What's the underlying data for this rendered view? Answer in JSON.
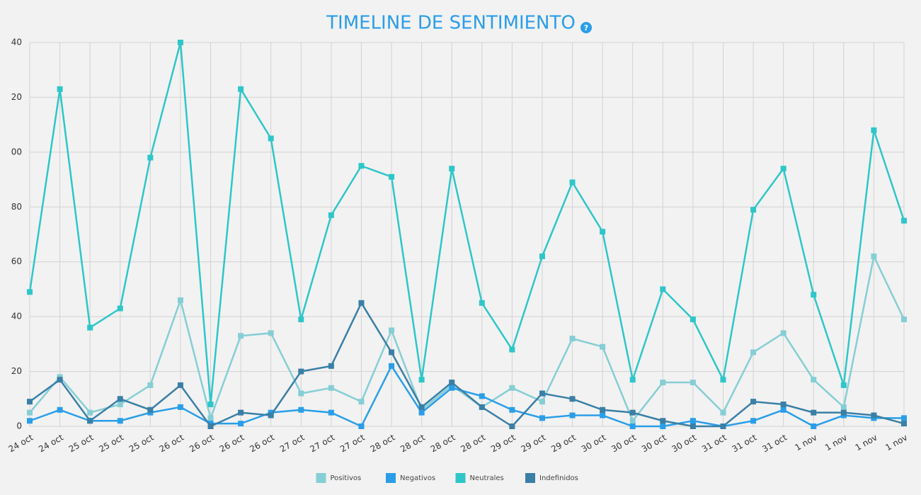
{
  "chart_data": {
    "type": "line",
    "title": "TIMELINE DE SENTIMIENTO",
    "help_icon": "?",
    "categories": [
      "24 oct",
      "24 oct",
      "25 oct",
      "25 oct",
      "25 oct",
      "26 oct",
      "26 oct",
      "26 oct",
      "26 oct",
      "27 oct",
      "27 oct",
      "27 oct",
      "28 oct",
      "28 oct",
      "28 oct",
      "28 oct",
      "29 oct",
      "29 oct",
      "29 oct",
      "30 oct",
      "30 oct",
      "30 oct",
      "30 oct",
      "31 oct",
      "31 oct",
      "31 oct",
      "1 nov",
      "1 nov",
      "1 nov",
      "1 nov"
    ],
    "series": [
      {
        "name": "Positivos",
        "color": "#86ced5",
        "values": [
          5,
          18,
          5,
          8,
          15,
          46,
          3,
          33,
          34,
          12,
          14,
          9,
          35,
          6,
          15,
          7,
          14,
          9,
          32,
          29,
          2,
          16,
          16,
          5,
          27,
          34,
          17,
          7,
          62,
          39
        ]
      },
      {
        "name": "Negativos",
        "color": "#2a9ee8",
        "values": [
          2,
          6,
          2,
          2,
          5,
          7,
          1,
          1,
          5,
          6,
          5,
          0,
          22,
          5,
          14,
          11,
          6,
          3,
          4,
          4,
          0,
          0,
          2,
          0,
          2,
          6,
          0,
          4,
          3,
          3
        ]
      },
      {
        "name": "Neutrales",
        "color": "#2ec6c9",
        "values": [
          49,
          123,
          36,
          43,
          98,
          140,
          8,
          123,
          105,
          39,
          77,
          95,
          91,
          17,
          94,
          45,
          28,
          62,
          89,
          71,
          17,
          50,
          39,
          17,
          79,
          94,
          48,
          15,
          108,
          75
        ]
      },
      {
        "name": "Indefinidos",
        "color": "#3a7fa6",
        "values": [
          9,
          17,
          2,
          10,
          6,
          15,
          0,
          5,
          4,
          20,
          22,
          45,
          27,
          7,
          16,
          7,
          0,
          12,
          10,
          6,
          5,
          2,
          0,
          0,
          9,
          8,
          5,
          5,
          4,
          1
        ]
      }
    ],
    "ylim": [
      0,
      140
    ],
    "yticks": [
      0,
      20,
      40,
      60,
      80,
      {
        "value": 100,
        "label": "00"
      },
      {
        "value": 120,
        "label": "20"
      },
      {
        "value": 140,
        "label": "40"
      }
    ],
    "grid": true,
    "legend": "bottom"
  }
}
